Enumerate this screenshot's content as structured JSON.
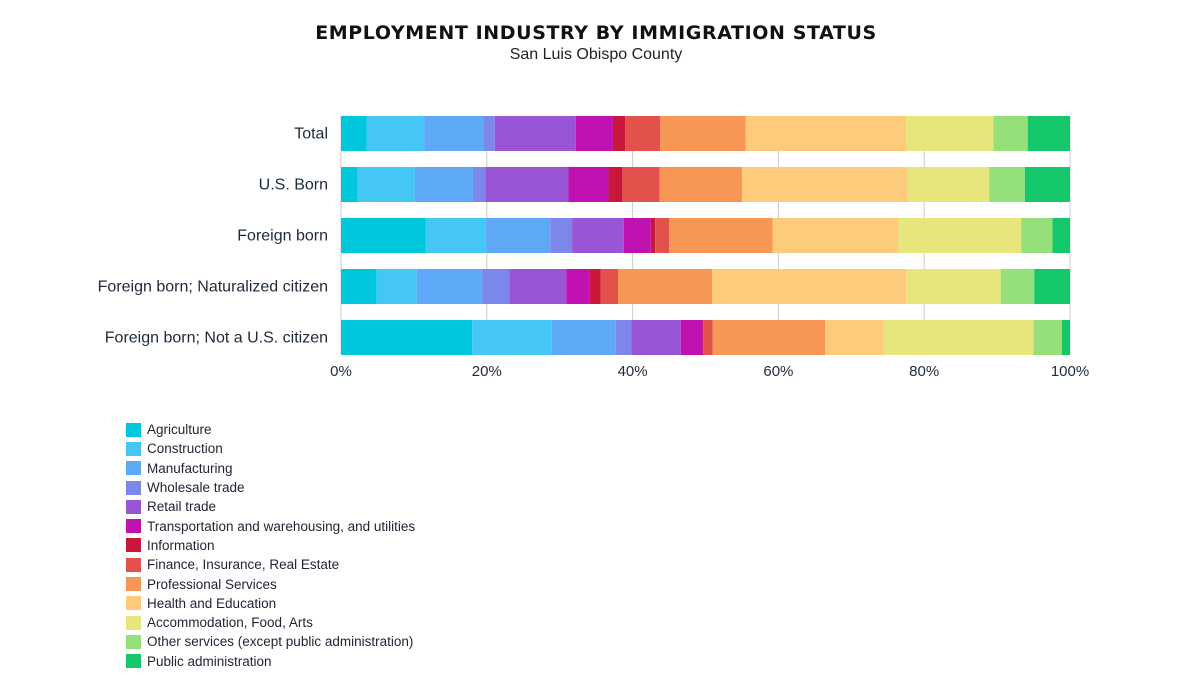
{
  "title": "EMPLOYMENT INDUSTRY BY IMMIGRATION STATUS",
  "subtitle": "San Luis Obispo County",
  "chart_data": {
    "type": "bar",
    "orientation": "horizontal",
    "stacked": "percent",
    "title": "EMPLOYMENT INDUSTRY BY IMMIGRATION STATUS",
    "subtitle": "San Luis Obispo County",
    "categories": [
      "Total",
      "U.S. Born",
      "Foreign born",
      "Foreign born; Naturalized citizen",
      "Foreign born; Not a U.S. citizen"
    ],
    "xlim": [
      0,
      100
    ],
    "xticks": [
      0,
      20,
      40,
      60,
      80,
      100
    ],
    "xtick_labels": [
      "0%",
      "20%",
      "40%",
      "60%",
      "80%",
      "100%"
    ],
    "grid": "vertical",
    "legend_position": "bottom-left",
    "series": [
      {
        "name": "Agriculture",
        "color": "#00c8dc",
        "values": [
          3.5,
          2.3,
          11.6,
          4.9,
          18.0
        ]
      },
      {
        "name": "Construction",
        "color": "#45c7f5",
        "values": [
          7.9,
          7.8,
          8.3,
          5.5,
          10.9
        ]
      },
      {
        "name": "Manufacturing",
        "color": "#5ea9f7",
        "values": [
          8.1,
          8.0,
          8.8,
          9.0,
          8.8
        ]
      },
      {
        "name": "Wholesale trade",
        "color": "#7d86ea",
        "values": [
          1.6,
          1.7,
          3.0,
          3.7,
          2.1
        ]
      },
      {
        "name": "Retail trade",
        "color": "#9a55d6",
        "values": [
          11.1,
          11.4,
          7.1,
          7.8,
          6.8
        ]
      },
      {
        "name": "Transportation and warehousing, and utilities",
        "color": "#c012b0",
        "values": [
          5.1,
          5.5,
          3.7,
          3.2,
          3.0
        ]
      },
      {
        "name": "Information",
        "color": "#c8173a",
        "values": [
          1.7,
          1.9,
          0.6,
          1.5,
          0.1
        ]
      },
      {
        "name": "Finance, Insurance, Real Estate",
        "color": "#e3514d",
        "values": [
          4.8,
          5.1,
          1.9,
          2.4,
          1.3
        ]
      },
      {
        "name": "Professional Services",
        "color": "#f79655",
        "values": [
          11.7,
          11.3,
          14.2,
          12.9,
          15.4
        ]
      },
      {
        "name": "Health and Education",
        "color": "#fecb7c",
        "values": [
          22.0,
          22.7,
          17.3,
          26.7,
          8.0
        ]
      },
      {
        "name": "Accommodation, Food, Arts",
        "color": "#e6e67c",
        "values": [
          12.0,
          11.2,
          16.8,
          12.9,
          20.6
        ]
      },
      {
        "name": "Other services (except public administration)",
        "color": "#96e07a",
        "values": [
          4.7,
          4.9,
          4.3,
          4.6,
          3.9
        ]
      },
      {
        "name": "Public administration",
        "color": "#14c76b",
        "values": [
          5.8,
          6.2,
          2.4,
          4.9,
          1.1
        ]
      }
    ]
  }
}
